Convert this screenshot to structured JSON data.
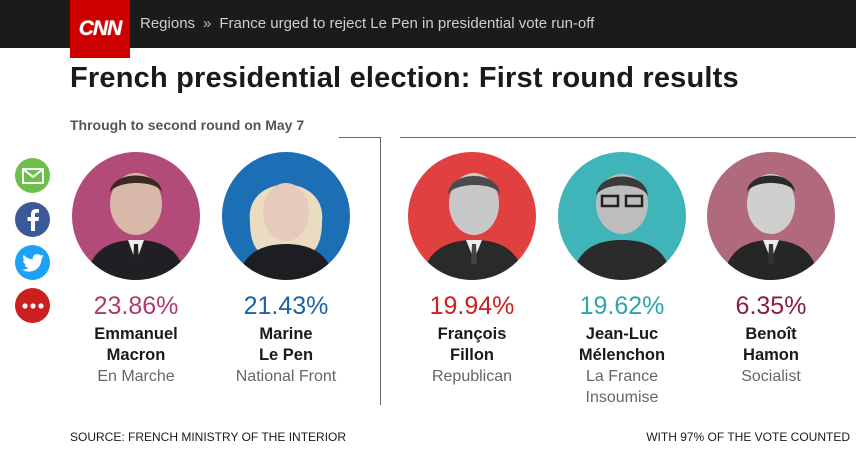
{
  "header": {
    "logo_text": "CNN",
    "breadcrumb": [
      "Regions",
      "France urged to reject Le Pen in presidential vote run-off"
    ],
    "separator": "»"
  },
  "title": "French presidential election: First round results",
  "subtitle": "Through to second round on May 7",
  "share_icons": [
    "email-icon",
    "facebook-icon",
    "twitter-icon",
    "more-icon"
  ],
  "candidates": [
    {
      "pct": "23.86%",
      "first": "Emmanuel",
      "last": "Macron",
      "party1": "En Marche",
      "party2": "",
      "color": "#b03a6e",
      "bg": "#b24a7a"
    },
    {
      "pct": "21.43%",
      "first": "Marine",
      "last": "Le Pen",
      "party1": "National Front",
      "party2": "",
      "color": "#1a64a8",
      "bg": "#1c6fb5"
    },
    {
      "pct": "19.94%",
      "first": "François",
      "last": "Fillon",
      "party1": "Republican",
      "party2": "",
      "color": "#cc1f1f",
      "bg": "#e04040"
    },
    {
      "pct": "19.62%",
      "first": "Jean-Luc",
      "last": "Mélenchon",
      "party1": "La France",
      "party2": "Insoumise",
      "color": "#2ba6ad",
      "bg": "#3fb4b9"
    },
    {
      "pct": "6.35%",
      "first": "Benoît",
      "last": "Hamon",
      "party1": "Socialist",
      "party2": "",
      "color": "#8a1f3c",
      "bg": "#b06a7c"
    }
  ],
  "footer": {
    "source": "SOURCE: FRENCH MINISTRY OF THE INTERIOR",
    "counted": "WITH 97% OF THE VOTE COUNTED"
  }
}
